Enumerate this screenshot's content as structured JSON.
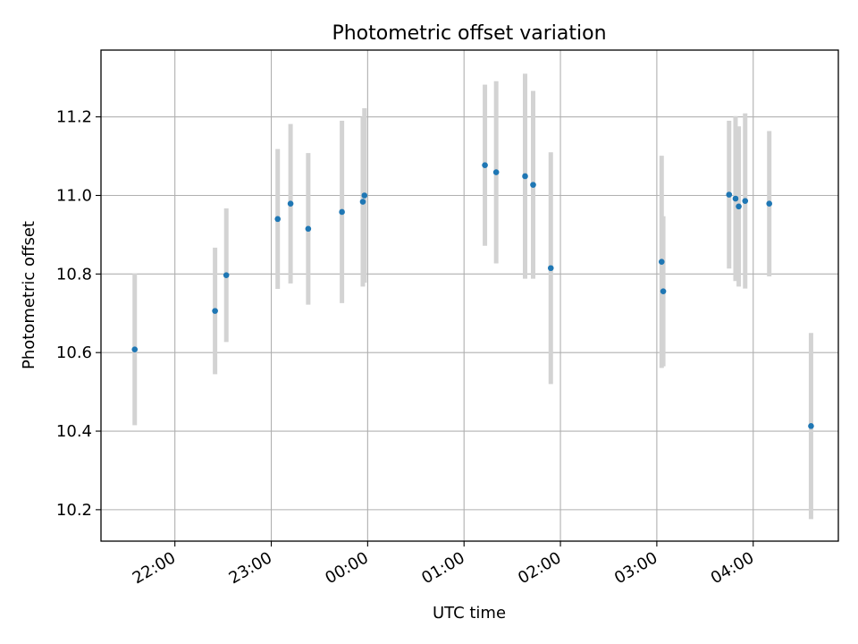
{
  "chart_data": {
    "type": "scatter",
    "title": "Photometric offset variation",
    "xlabel": "UTC time",
    "ylabel": "Photometric offset",
    "xlim": [
      "2023-01-01 21:14",
      "2023-01-02 04:53"
    ],
    "ylim": [
      10.12,
      11.37
    ],
    "x_ticks": [
      {
        "t": "2023-01-01 22:00",
        "label": "22:00"
      },
      {
        "t": "2023-01-01 23:00",
        "label": "23:00"
      },
      {
        "t": "2023-01-02 00:00",
        "label": "00:00"
      },
      {
        "t": "2023-01-02 01:00",
        "label": "01:00"
      },
      {
        "t": "2023-01-02 02:00",
        "label": "02:00"
      },
      {
        "t": "2023-01-02 03:00",
        "label": "03:00"
      },
      {
        "t": "2023-01-02 04:00",
        "label": "04:00"
      }
    ],
    "y_ticks": [
      10.2,
      10.4,
      10.6,
      10.8,
      11.0,
      11.2
    ],
    "y_tick_labels": [
      "10.2",
      "10.4",
      "10.6",
      "10.8",
      "11.0",
      "11.2"
    ],
    "grid": true,
    "colors": {
      "points": "#1f77b4",
      "errorbars": "#d3d3d3",
      "grid": "#b0b0b0"
    },
    "points": [
      {
        "t": "2023-01-01 21:35",
        "y": 10.608,
        "err": 0.193
      },
      {
        "t": "2023-01-01 22:25",
        "y": 10.706,
        "err": 0.161
      },
      {
        "t": "2023-01-01 22:32",
        "y": 10.797,
        "err": 0.17
      },
      {
        "t": "2023-01-01 23:04",
        "y": 10.94,
        "err": 0.178
      },
      {
        "t": "2023-01-01 23:12",
        "y": 10.979,
        "err": 0.203
      },
      {
        "t": "2023-01-01 23:23",
        "y": 10.915,
        "err": 0.193
      },
      {
        "t": "2023-01-01 23:44",
        "y": 10.958,
        "err": 0.232
      },
      {
        "t": "2023-01-01 23:57",
        "y": 10.984,
        "err": 0.216
      },
      {
        "t": "2023-01-01 23:58",
        "y": 11.0,
        "err": 0.222
      },
      {
        "t": "2023-01-02 01:13",
        "y": 11.077,
        "err": 0.205
      },
      {
        "t": "2023-01-02 01:20",
        "y": 11.059,
        "err": 0.232
      },
      {
        "t": "2023-01-02 01:38",
        "y": 11.049,
        "err": 0.261
      },
      {
        "t": "2023-01-02 01:43",
        "y": 11.027,
        "err": 0.239
      },
      {
        "t": "2023-01-02 01:54",
        "y": 10.815,
        "err": 0.295
      },
      {
        "t": "2023-01-02 03:03",
        "y": 10.831,
        "err": 0.27
      },
      {
        "t": "2023-01-02 03:04",
        "y": 10.756,
        "err": 0.191
      },
      {
        "t": "2023-01-02 03:45",
        "y": 11.002,
        "err": 0.188
      },
      {
        "t": "2023-01-02 03:49",
        "y": 10.992,
        "err": 0.21
      },
      {
        "t": "2023-01-02 03:51",
        "y": 10.972,
        "err": 0.204
      },
      {
        "t": "2023-01-02 03:55",
        "y": 10.986,
        "err": 0.223
      },
      {
        "t": "2023-01-02 04:10",
        "y": 10.979,
        "err": 0.185
      },
      {
        "t": "2023-01-02 04:36",
        "y": 10.413,
        "err": 0.237
      }
    ]
  }
}
